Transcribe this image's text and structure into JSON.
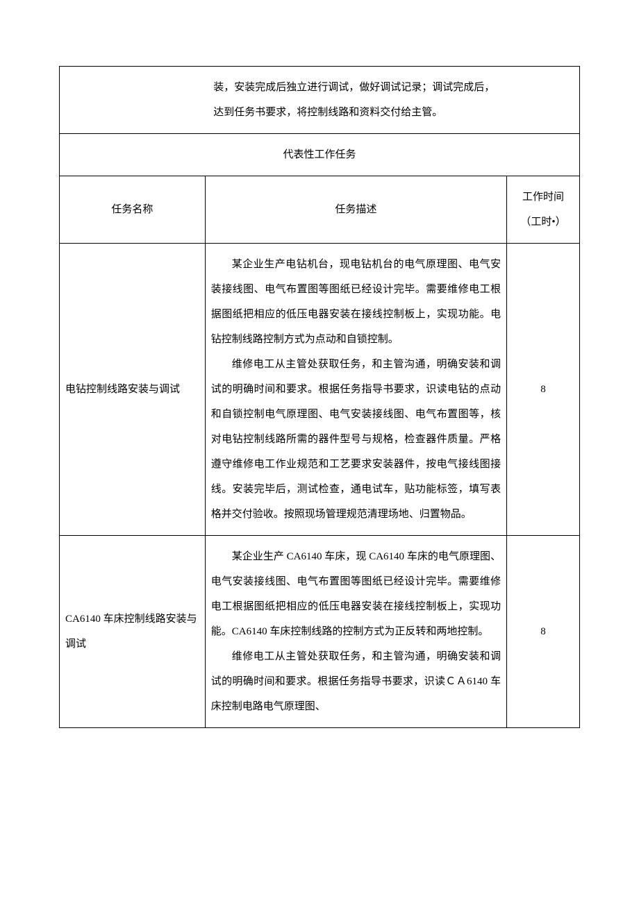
{
  "table": {
    "border_color": "#000000",
    "background_color": "#ffffff",
    "font_family": "SimSun",
    "font_size": 15,
    "line_height": 2.4,
    "top_row": {
      "col2_text": "装，安装完成后独立进行调试，做好调试记录；调试完成后，达到任务书要求，将控制线路和资料交付给主管。"
    },
    "section_title": "代表性工作任务",
    "columns": {
      "name": "任务名称",
      "desc": "任务描述",
      "time": "工作时间（工时•）"
    },
    "rows": [
      {
        "name": "电钻控制线路安装与调试",
        "desc_p1": "某企业生产电钻机台，现电钻机台的电气原理图、电气安装接线图、电气布置图等图纸已经设计完毕。需要维修电工根据图纸把相应的低压电器安装在接线控制板上，实现功能。电钻控制线路控制方式为点动和自锁控制。",
        "desc_p2": "维修电工从主管处获取任务，和主管沟通，明确安装和调试的明确时间和要求。根据任务指导书要求，识读电钻的点动和自锁控制电气原理图、电气安装接线图、电气布置图等，核对电钻控制线路所需的器件型号与规格，检查器件质量。严格遵守维修电工作业规范和工艺要求安装器件，按电气接线图接线。安装完毕后，测试检查，通电试车，贴功能标签，填写表格并交付验收。按照现场管理规范清理场地、归置物品。",
        "time": "8"
      },
      {
        "name": "CA6140 车床控制线路安装与调试",
        "desc_p1": "某企业生产 CA6140 车床，现 CA6140 车床的电气原理图、电气安装接线图、电气布置图等图纸已经设计完毕。需要维修电工根据图纸把相应的低压电器安装在接线控制板上，实现功能。CA6140 车床控制线路的控制方式为正反转和两地控制。",
        "desc_p2": "维修电工从主管处获取任务，和主管沟通，明确安装和调试的明确时间和要求。根据任务指导书要求，识读ＣＡ6140 车床控制电路电气原理图、",
        "time": "8"
      }
    ]
  }
}
